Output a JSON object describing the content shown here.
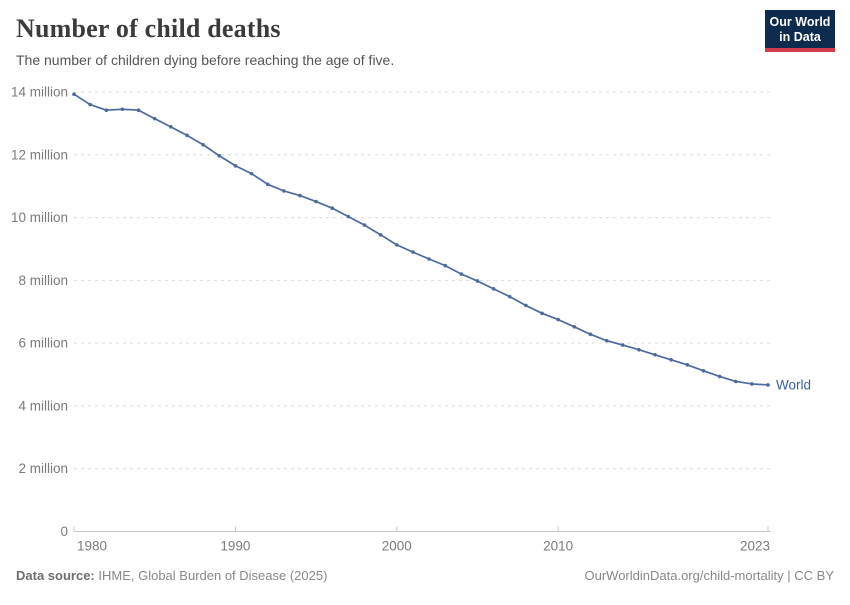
{
  "header": {
    "title": "Number of child deaths",
    "subtitle": "The number of children dying before reaching the age of five.",
    "logo": {
      "line1": "Our World",
      "line2": "in Data",
      "bg_color": "#0e2a4d",
      "accent_color": "#d13b4b",
      "text_color": "#ffffff"
    }
  },
  "chart_data": {
    "type": "line",
    "title": "Number of child deaths",
    "xlabel": "",
    "ylabel": "",
    "unit": "million deaths",
    "xlim": [
      1980,
      2023
    ],
    "ylim": [
      0,
      14
    ],
    "grid": "dashed-horizontal",
    "legend": "end-of-line-label",
    "x_ticks": [
      {
        "value": 1980,
        "label": "1980"
      },
      {
        "value": 1990,
        "label": "1990"
      },
      {
        "value": 2000,
        "label": "2000"
      },
      {
        "value": 2010,
        "label": "2010"
      },
      {
        "value": 2023,
        "label": "2023"
      }
    ],
    "y_ticks": [
      {
        "value": 0,
        "label": "0"
      },
      {
        "value": 2,
        "label": "2 million"
      },
      {
        "value": 4,
        "label": "4 million"
      },
      {
        "value": 6,
        "label": "6 million"
      },
      {
        "value": 8,
        "label": "8 million"
      },
      {
        "value": 10,
        "label": "10 million"
      },
      {
        "value": 12,
        "label": "12 million"
      },
      {
        "value": 14,
        "label": "14 million"
      }
    ],
    "series": [
      {
        "name": "World",
        "color": "#4c6a9c",
        "label_color": "#3d5f9d",
        "x": [
          1980,
          1981,
          1982,
          1983,
          1984,
          1985,
          1986,
          1987,
          1988,
          1989,
          1990,
          1991,
          1992,
          1993,
          1994,
          1995,
          1996,
          1997,
          1998,
          1999,
          2000,
          2001,
          2002,
          2003,
          2004,
          2005,
          2006,
          2007,
          2008,
          2009,
          2010,
          2011,
          2012,
          2013,
          2014,
          2015,
          2016,
          2017,
          2018,
          2019,
          2020,
          2021,
          2022,
          2023
        ],
        "values": [
          13.93,
          13.6,
          13.42,
          13.45,
          13.42,
          13.15,
          12.89,
          12.62,
          12.32,
          11.97,
          11.65,
          11.4,
          11.06,
          10.85,
          10.7,
          10.51,
          10.3,
          10.03,
          9.76,
          9.45,
          9.13,
          8.9,
          8.68,
          8.47,
          8.2,
          7.98,
          7.73,
          7.48,
          7.2,
          6.95,
          6.75,
          6.52,
          6.28,
          6.08,
          5.94,
          5.79,
          5.63,
          5.47,
          5.31,
          5.12,
          4.94,
          4.78,
          4.7,
          4.67
        ]
      }
    ]
  },
  "footer": {
    "source_label": "Data source:",
    "source_text": "IHME, Global Burden of Disease (2025)",
    "link_text": "OurWorldinData.org/child-mortality | CC BY"
  }
}
